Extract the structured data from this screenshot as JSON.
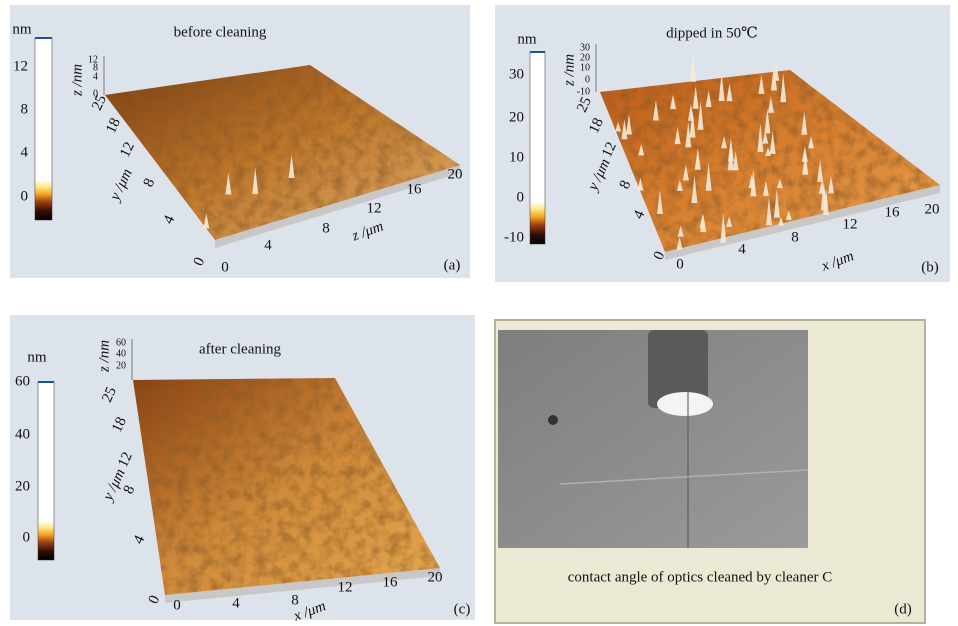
{
  "panels": [
    {
      "colorbar_unit": "nm",
      "colorbar_ticks": [
        12,
        8,
        4,
        0
      ],
      "title": "before cleaning",
      "z_axis_label": "z /nm",
      "z_ticks": [
        12,
        8,
        4,
        0
      ],
      "y_axis_label": "y /μm",
      "y_ticks": [
        25,
        18,
        12,
        8,
        4,
        0
      ],
      "x_axis_label": "z /μm",
      "x_ticks": [
        0,
        4,
        8,
        12,
        16,
        20
      ],
      "panel_label": "(a)"
    },
    {
      "colorbar_unit": "nm",
      "colorbar_ticks": [
        30,
        20,
        10,
        0,
        -10
      ],
      "title": "dipped in 50℃",
      "z_axis_label": "z /nm",
      "z_ticks": [
        30,
        20,
        10,
        0,
        -10
      ],
      "y_axis_label": "y /μm",
      "y_ticks": [
        25,
        18,
        12,
        8,
        4,
        0
      ],
      "x_axis_label": "x /μm",
      "x_ticks": [
        0,
        4,
        8,
        12,
        16,
        20
      ],
      "panel_label": "(b)"
    },
    {
      "colorbar_unit": "nm",
      "colorbar_ticks": [
        60,
        40,
        20,
        0
      ],
      "title": "after cleaning",
      "z_axis_label": "z /nm",
      "z_ticks": [
        60,
        40,
        20
      ],
      "y_axis_label": "y /μm",
      "y_ticks": [
        25,
        18,
        12,
        8,
        4,
        0
      ],
      "x_axis_label": "x /μm",
      "x_ticks": [
        0,
        4,
        8,
        12,
        16,
        20
      ],
      "panel_label": "(c)"
    }
  ],
  "photo": {
    "caption": "contact angle of optics cleaned by cleaner C",
    "panel_label": "(d)"
  }
}
